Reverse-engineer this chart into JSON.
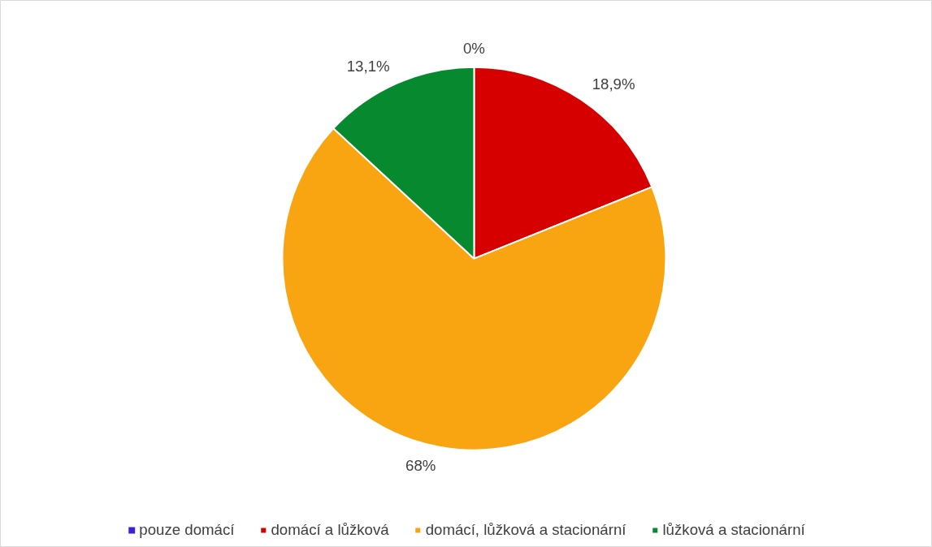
{
  "chart_data": {
    "type": "pie",
    "categories": [
      "pouze domácí",
      "domácí a lůžková",
      "domácí, lůžková a stacionární",
      "lůžková a stacionární"
    ],
    "values": [
      0,
      18.9,
      68,
      13.1
    ],
    "value_labels": [
      "0%",
      "18,9%",
      "68%",
      "13,1%"
    ],
    "colors": [
      "#3c1fd8",
      "#d60000",
      "#f8a511",
      "#06892f"
    ],
    "legend": "bottom"
  }
}
